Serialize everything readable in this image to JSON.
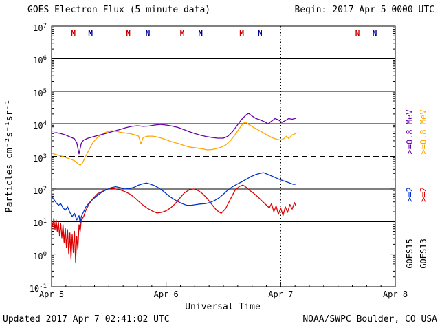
{
  "header": {
    "title": "GOES Electron Flux (5 minute data)",
    "begin": "Begin: 2017 Apr 5 0000 UTC"
  },
  "footer": {
    "updated": "Updated 2017 Apr  7 02:41:02 UTC",
    "credit": "NOAA/SWPC Boulder, CO USA"
  },
  "right_labels": [
    {
      "id": "goes15-energy-0.8-label",
      "text": ">=0.8 MeV",
      "color": "#6600aa",
      "col": 0,
      "row": 0
    },
    {
      "id": "goes15-energy-2-label",
      "text": ">=2",
      "color": "#0033cc",
      "col": 0,
      "row": 1
    },
    {
      "id": "goes15-satellite-label",
      "text": "GOES15",
      "color": "#000000",
      "col": 0,
      "row": 2
    },
    {
      "id": "goes13-energy-0.8-label",
      "text": ">=0.8 MeV",
      "color": "#ffa500",
      "col": 1,
      "row": 0
    },
    {
      "id": "goes13-energy-2-label",
      "text": ">=2",
      "color": "#dd0000",
      "col": 1,
      "row": 1
    },
    {
      "id": "goes13-satellite-label",
      "text": "GOES13",
      "color": "#000000",
      "col": 1,
      "row": 2
    }
  ],
  "chart_data": {
    "type": "line",
    "title": "GOES Electron Flux (5 minute data)",
    "xlabel": "Universal Time",
    "ylabel": "Particles cm⁻²s⁻¹sr⁻¹",
    "y_scale": "log10",
    "y_range": [
      0.1,
      10000000
    ],
    "y_tick_exponents": [
      7,
      6,
      5,
      4,
      3,
      2,
      1,
      0,
      -1
    ],
    "x_tick_labels": [
      "Apr 5",
      "Apr 6",
      "Apr 7",
      "Apr 8"
    ],
    "x_span_days": 3,
    "time_units": "days since 2017 Apr 5 0000 UTC",
    "values_are": "log10 of electron flux",
    "alert_threshold": {
      "value": 1000,
      "log10": 3,
      "line_style": "dashed"
    },
    "day_dividers_at": [
      1,
      2
    ],
    "grid": "solid horizontal line each decade",
    "legend_position": "right-rotated",
    "series": [
      {
        "id": "goes13-e0.8",
        "name": "GOES13 >=0.8 MeV",
        "color": "#ffa500",
        "points": [
          [
            0,
            3.1
          ],
          [
            0.04,
            3.06
          ],
          [
            0.08,
            3.02
          ],
          [
            0.12,
            2.97
          ],
          [
            0.16,
            2.92
          ],
          [
            0.2,
            2.87
          ],
          [
            0.23,
            2.78
          ],
          [
            0.25,
            2.73
          ],
          [
            0.27,
            2.8
          ],
          [
            0.3,
            3.02
          ],
          [
            0.33,
            3.22
          ],
          [
            0.36,
            3.42
          ],
          [
            0.4,
            3.58
          ],
          [
            0.44,
            3.68
          ],
          [
            0.48,
            3.75
          ],
          [
            0.52,
            3.79
          ],
          [
            0.56,
            3.77
          ],
          [
            0.6,
            3.74
          ],
          [
            0.64,
            3.72
          ],
          [
            0.68,
            3.7
          ],
          [
            0.72,
            3.67
          ],
          [
            0.76,
            3.62
          ],
          [
            0.78,
            3.38
          ],
          [
            0.8,
            3.58
          ],
          [
            0.84,
            3.62
          ],
          [
            0.88,
            3.62
          ],
          [
            0.92,
            3.6
          ],
          [
            0.96,
            3.56
          ],
          [
            1,
            3.51
          ],
          [
            1.04,
            3.46
          ],
          [
            1.08,
            3.42
          ],
          [
            1.12,
            3.38
          ],
          [
            1.16,
            3.33
          ],
          [
            1.2,
            3.29
          ],
          [
            1.24,
            3.27
          ],
          [
            1.28,
            3.25
          ],
          [
            1.32,
            3.23
          ],
          [
            1.36,
            3.2
          ],
          [
            1.4,
            3.21
          ],
          [
            1.44,
            3.24
          ],
          [
            1.48,
            3.28
          ],
          [
            1.52,
            3.35
          ],
          [
            1.56,
            3.48
          ],
          [
            1.6,
            3.66
          ],
          [
            1.64,
            3.86
          ],
          [
            1.67,
            4
          ],
          [
            1.69,
            4.06
          ],
          [
            1.72,
            3.98
          ],
          [
            1.76,
            3.9
          ],
          [
            1.8,
            3.82
          ],
          [
            1.84,
            3.74
          ],
          [
            1.88,
            3.66
          ],
          [
            1.92,
            3.58
          ],
          [
            1.96,
            3.53
          ],
          [
            2,
            3.5
          ],
          [
            2.03,
            3.55
          ],
          [
            2.05,
            3.62
          ],
          [
            2.07,
            3.55
          ],
          [
            2.1,
            3.66
          ],
          [
            2.13,
            3.7
          ]
        ]
      },
      {
        "id": "goes15-e0.8",
        "name": "GOES15 >=0.8 MeV",
        "color": "#6600aa",
        "points": [
          [
            0,
            3.7
          ],
          [
            0.04,
            3.73
          ],
          [
            0.08,
            3.7
          ],
          [
            0.12,
            3.66
          ],
          [
            0.16,
            3.6
          ],
          [
            0.2,
            3.54
          ],
          [
            0.22,
            3.42
          ],
          [
            0.24,
            3.08
          ],
          [
            0.26,
            3.4
          ],
          [
            0.28,
            3.5
          ],
          [
            0.32,
            3.56
          ],
          [
            0.36,
            3.6
          ],
          [
            0.4,
            3.64
          ],
          [
            0.45,
            3.68
          ],
          [
            0.5,
            3.73
          ],
          [
            0.55,
            3.78
          ],
          [
            0.6,
            3.83
          ],
          [
            0.65,
            3.88
          ],
          [
            0.7,
            3.92
          ],
          [
            0.75,
            3.94
          ],
          [
            0.8,
            3.92
          ],
          [
            0.85,
            3.93
          ],
          [
            0.9,
            3.96
          ],
          [
            0.95,
            3.98
          ],
          [
            1,
            3.96
          ],
          [
            1.05,
            3.93
          ],
          [
            1.1,
            3.89
          ],
          [
            1.15,
            3.83
          ],
          [
            1.2,
            3.76
          ],
          [
            1.25,
            3.7
          ],
          [
            1.3,
            3.65
          ],
          [
            1.35,
            3.61
          ],
          [
            1.4,
            3.58
          ],
          [
            1.45,
            3.56
          ],
          [
            1.5,
            3.56
          ],
          [
            1.54,
            3.62
          ],
          [
            1.58,
            3.76
          ],
          [
            1.62,
            3.95
          ],
          [
            1.66,
            4.14
          ],
          [
            1.7,
            4.28
          ],
          [
            1.72,
            4.32
          ],
          [
            1.75,
            4.24
          ],
          [
            1.78,
            4.17
          ],
          [
            1.82,
            4.12
          ],
          [
            1.86,
            4.06
          ],
          [
            1.89,
            4
          ],
          [
            1.92,
            4.08
          ],
          [
            1.95,
            4.16
          ],
          [
            1.98,
            4.12
          ],
          [
            2.01,
            4.04
          ],
          [
            2.04,
            4.1
          ],
          [
            2.07,
            4.16
          ],
          [
            2.1,
            4.14
          ],
          [
            2.13,
            4.17
          ]
        ]
      },
      {
        "id": "goes13-e2",
        "name": "GOES13 >=2 MeV",
        "color": "#dd0000",
        "points": [
          [
            0,
            1.05
          ],
          [
            0.01,
            0.85
          ],
          [
            0.02,
            1.1
          ],
          [
            0.03,
            0.75
          ],
          [
            0.04,
            1.05
          ],
          [
            0.05,
            0.7
          ],
          [
            0.06,
            1
          ],
          [
            0.07,
            0.55
          ],
          [
            0.08,
            0.95
          ],
          [
            0.09,
            0.5
          ],
          [
            0.1,
            0.9
          ],
          [
            0.11,
            0.35
          ],
          [
            0.12,
            0.8
          ],
          [
            0.13,
            0.2
          ],
          [
            0.14,
            0.75
          ],
          [
            0.15,
            0
          ],
          [
            0.16,
            0.65
          ],
          [
            0.17,
            -0.15
          ],
          [
            0.18,
            0.6
          ],
          [
            0.19,
            0.05
          ],
          [
            0.2,
            0.7
          ],
          [
            0.21,
            -0.25
          ],
          [
            0.22,
            0.55
          ],
          [
            0.23,
            0.15
          ],
          [
            0.24,
            0.9
          ],
          [
            0.25,
            0.7
          ],
          [
            0.26,
            1.05
          ],
          [
            0.28,
            1.15
          ],
          [
            0.3,
            1.35
          ],
          [
            0.33,
            1.55
          ],
          [
            0.36,
            1.7
          ],
          [
            0.4,
            1.85
          ],
          [
            0.44,
            1.92
          ],
          [
            0.48,
            1.98
          ],
          [
            0.52,
            2.02
          ],
          [
            0.56,
            2
          ],
          [
            0.6,
            1.97
          ],
          [
            0.64,
            1.92
          ],
          [
            0.68,
            1.85
          ],
          [
            0.72,
            1.75
          ],
          [
            0.76,
            1.62
          ],
          [
            0.8,
            1.5
          ],
          [
            0.84,
            1.4
          ],
          [
            0.88,
            1.32
          ],
          [
            0.92,
            1.26
          ],
          [
            0.96,
            1.28
          ],
          [
            1,
            1.33
          ],
          [
            1.04,
            1.42
          ],
          [
            1.08,
            1.55
          ],
          [
            1.12,
            1.72
          ],
          [
            1.16,
            1.88
          ],
          [
            1.2,
            1.97
          ],
          [
            1.24,
            2
          ],
          [
            1.28,
            1.95
          ],
          [
            1.32,
            1.85
          ],
          [
            1.36,
            1.7
          ],
          [
            1.4,
            1.52
          ],
          [
            1.44,
            1.35
          ],
          [
            1.48,
            1.25
          ],
          [
            1.52,
            1.4
          ],
          [
            1.56,
            1.68
          ],
          [
            1.6,
            1.95
          ],
          [
            1.64,
            2.08
          ],
          [
            1.67,
            2.12
          ],
          [
            1.7,
            2.05
          ],
          [
            1.73,
            1.95
          ],
          [
            1.76,
            1.88
          ],
          [
            1.8,
            1.76
          ],
          [
            1.84,
            1.62
          ],
          [
            1.87,
            1.52
          ],
          [
            1.9,
            1.42
          ],
          [
            1.92,
            1.55
          ],
          [
            1.94,
            1.3
          ],
          [
            1.96,
            1.48
          ],
          [
            1.98,
            1.22
          ],
          [
            2,
            1.42
          ],
          [
            2.02,
            1.18
          ],
          [
            2.04,
            1.45
          ],
          [
            2.06,
            1.28
          ],
          [
            2.08,
            1.52
          ],
          [
            2.1,
            1.38
          ],
          [
            2.12,
            1.58
          ],
          [
            2.13,
            1.5
          ]
        ]
      },
      {
        "id": "goes15-e2",
        "name": "GOES15 >=2 MeV",
        "color": "#0033cc",
        "points": [
          [
            0,
            1.78
          ],
          [
            0.02,
            1.68
          ],
          [
            0.04,
            1.58
          ],
          [
            0.06,
            1.5
          ],
          [
            0.08,
            1.55
          ],
          [
            0.1,
            1.42
          ],
          [
            0.12,
            1.35
          ],
          [
            0.14,
            1.45
          ],
          [
            0.16,
            1.28
          ],
          [
            0.18,
            1.15
          ],
          [
            0.2,
            1.25
          ],
          [
            0.22,
            1.05
          ],
          [
            0.24,
            1.18
          ],
          [
            0.25,
            0.95
          ],
          [
            0.26,
            1.15
          ],
          [
            0.28,
            1.3
          ],
          [
            0.3,
            1.45
          ],
          [
            0.33,
            1.58
          ],
          [
            0.36,
            1.68
          ],
          [
            0.4,
            1.8
          ],
          [
            0.44,
            1.9
          ],
          [
            0.48,
            1.98
          ],
          [
            0.52,
            2.04
          ],
          [
            0.56,
            2.07
          ],
          [
            0.6,
            2.04
          ],
          [
            0.64,
            2
          ],
          [
            0.68,
            2.01
          ],
          [
            0.72,
            2.05
          ],
          [
            0.76,
            2.12
          ],
          [
            0.8,
            2.16
          ],
          [
            0.83,
            2.18
          ],
          [
            0.86,
            2.15
          ],
          [
            0.9,
            2.1
          ],
          [
            0.94,
            2.02
          ],
          [
            0.98,
            1.92
          ],
          [
            1.02,
            1.8
          ],
          [
            1.06,
            1.7
          ],
          [
            1.1,
            1.62
          ],
          [
            1.14,
            1.55
          ],
          [
            1.18,
            1.5
          ],
          [
            1.22,
            1.5
          ],
          [
            1.26,
            1.52
          ],
          [
            1.3,
            1.54
          ],
          [
            1.34,
            1.55
          ],
          [
            1.38,
            1.58
          ],
          [
            1.42,
            1.64
          ],
          [
            1.46,
            1.72
          ],
          [
            1.5,
            1.84
          ],
          [
            1.54,
            1.97
          ],
          [
            1.58,
            2.07
          ],
          [
            1.62,
            2.15
          ],
          [
            1.66,
            2.22
          ],
          [
            1.7,
            2.3
          ],
          [
            1.74,
            2.38
          ],
          [
            1.78,
            2.44
          ],
          [
            1.82,
            2.48
          ],
          [
            1.85,
            2.5
          ],
          [
            1.88,
            2.46
          ],
          [
            1.92,
            2.4
          ],
          [
            1.96,
            2.34
          ],
          [
            2,
            2.28
          ],
          [
            2.04,
            2.23
          ],
          [
            2.08,
            2.18
          ],
          [
            2.11,
            2.14
          ],
          [
            2.13,
            2.15
          ]
        ]
      }
    ],
    "markers": [
      {
        "t": 0.19,
        "label": "M",
        "color": "#cc0000"
      },
      {
        "t": 0.34,
        "label": "M",
        "color": "#000099"
      },
      {
        "t": 0.67,
        "label": "N",
        "color": "#cc0000"
      },
      {
        "t": 0.84,
        "label": "N",
        "color": "#000099"
      },
      {
        "t": 1.14,
        "label": "M",
        "color": "#cc0000"
      },
      {
        "t": 1.3,
        "label": "N",
        "color": "#000099"
      },
      {
        "t": 1.66,
        "label": "M",
        "color": "#cc0000"
      },
      {
        "t": 1.82,
        "label": "N",
        "color": "#000099"
      },
      {
        "t": 2.67,
        "label": "N",
        "color": "#cc0000"
      },
      {
        "t": 2.82,
        "label": "N",
        "color": "#000099"
      }
    ]
  }
}
